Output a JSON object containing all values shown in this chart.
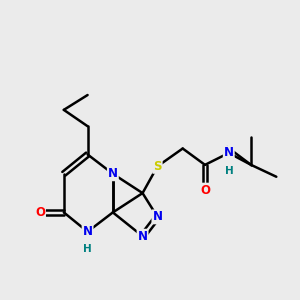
{
  "bg_color": "#ebebeb",
  "atom_colors": {
    "N": "#0000ee",
    "O": "#ff0000",
    "S": "#cccc00",
    "H": "#008080"
  },
  "bond_color": "#000000",
  "bond_width": 1.8,
  "doffset": 0.08,
  "figsize": [
    3.0,
    3.0
  ],
  "dpi": 100
}
